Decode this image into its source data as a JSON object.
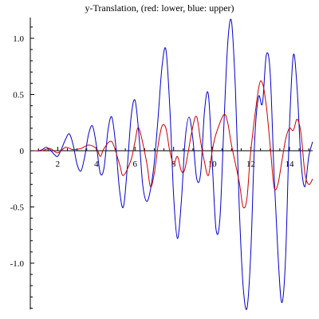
{
  "chart_data": {
    "type": "line",
    "title": "y-Translation, (red: lower, blue: upper)",
    "xlabel": "",
    "ylabel": "",
    "xlim": [
      0,
      15.2
    ],
    "ylim": [
      -1.4,
      1.15
    ],
    "x_ticks": [
      2,
      4,
      6,
      8,
      10,
      12,
      14
    ],
    "x_tick_labels": [
      "2",
      "4",
      "6",
      "8",
      "10",
      "12",
      "14"
    ],
    "y_ticks": [
      1.0,
      0.5,
      0,
      -0.5,
      -1.0
    ],
    "y_tick_labels": [
      "1.0",
      "0.5",
      "0",
      "-0.5",
      "-1.0"
    ],
    "grid": false,
    "legend": "none",
    "series": [
      {
        "color": "#0000cc",
        "points": [
          [
            0.8,
            0.0
          ],
          [
            1.0,
            0.0
          ],
          [
            1.2,
            0.01
          ],
          [
            1.4,
            0.03
          ],
          [
            1.6,
            0.01
          ],
          [
            1.8,
            -0.03
          ],
          [
            2.0,
            -0.05
          ],
          [
            2.2,
            0.02
          ],
          [
            2.4,
            0.1
          ],
          [
            2.6,
            0.15
          ],
          [
            2.8,
            0.05
          ],
          [
            3.0,
            -0.12
          ],
          [
            3.2,
            -0.18
          ],
          [
            3.4,
            -0.05
          ],
          [
            3.6,
            0.15
          ],
          [
            3.8,
            0.22
          ],
          [
            4.0,
            0.05
          ],
          [
            4.2,
            -0.2
          ],
          [
            4.4,
            -0.15
          ],
          [
            4.6,
            0.18
          ],
          [
            4.8,
            0.3
          ],
          [
            5.0,
            0.05
          ],
          [
            5.2,
            -0.35
          ],
          [
            5.4,
            -0.5
          ],
          [
            5.6,
            -0.15
          ],
          [
            5.8,
            0.3
          ],
          [
            6.0,
            0.45
          ],
          [
            6.2,
            0.15
          ],
          [
            6.4,
            -0.3
          ],
          [
            6.6,
            -0.45
          ],
          [
            6.8,
            -0.35
          ],
          [
            7.0,
            -0.1
          ],
          [
            7.2,
            0.3
          ],
          [
            7.4,
            0.75
          ],
          [
            7.6,
            0.9
          ],
          [
            7.8,
            0.4
          ],
          [
            8.0,
            -0.4
          ],
          [
            8.2,
            -0.78
          ],
          [
            8.4,
            -0.45
          ],
          [
            8.6,
            0.1
          ],
          [
            8.8,
            0.3
          ],
          [
            9.0,
            0.1
          ],
          [
            9.2,
            -0.25
          ],
          [
            9.4,
            -0.2
          ],
          [
            9.6,
            0.35
          ],
          [
            9.8,
            0.5
          ],
          [
            10.0,
            -0.1
          ],
          [
            10.2,
            -0.7
          ],
          [
            10.4,
            -0.6
          ],
          [
            10.6,
            0.2
          ],
          [
            10.8,
            0.95
          ],
          [
            11.0,
            1.15
          ],
          [
            11.2,
            0.55
          ],
          [
            11.4,
            -0.5
          ],
          [
            11.6,
            -1.2
          ],
          [
            11.8,
            -1.4
          ],
          [
            12.0,
            -0.9
          ],
          [
            12.2,
            0.1
          ],
          [
            12.4,
            0.48
          ],
          [
            12.6,
            0.42
          ],
          [
            12.8,
            0.85
          ],
          [
            13.0,
            0.7
          ],
          [
            13.2,
            -0.2
          ],
          [
            13.4,
            -0.9
          ],
          [
            13.6,
            -1.35
          ],
          [
            13.8,
            -0.95
          ],
          [
            14.0,
            0.2
          ],
          [
            14.2,
            0.85
          ],
          [
            14.4,
            0.55
          ],
          [
            14.6,
            -0.1
          ],
          [
            14.8,
            -0.32
          ],
          [
            15.0,
            -0.05
          ],
          [
            15.2,
            0.08
          ]
        ]
      },
      {
        "color": "#cc0000",
        "points": [
          [
            0.8,
            0.0
          ],
          [
            1.2,
            0.0
          ],
          [
            1.6,
            0.02
          ],
          [
            2.0,
            -0.02
          ],
          [
            2.4,
            0.03
          ],
          [
            2.8,
            0.01
          ],
          [
            3.2,
            0.02
          ],
          [
            3.6,
            0.05
          ],
          [
            4.0,
            0.02
          ],
          [
            4.2,
            -0.05
          ],
          [
            4.4,
            0.02
          ],
          [
            4.8,
            0.08
          ],
          [
            5.2,
            -0.12
          ],
          [
            5.4,
            -0.22
          ],
          [
            5.8,
            -0.08
          ],
          [
            6.0,
            0.08
          ],
          [
            6.2,
            0.2
          ],
          [
            6.6,
            -0.1
          ],
          [
            6.8,
            -0.32
          ],
          [
            7.0,
            -0.2
          ],
          [
            7.2,
            0.05
          ],
          [
            7.4,
            0.22
          ],
          [
            7.6,
            0.2
          ],
          [
            7.8,
            0.0
          ],
          [
            8.0,
            -0.12
          ],
          [
            8.2,
            -0.05
          ],
          [
            8.4,
            -0.18
          ],
          [
            8.6,
            -0.15
          ],
          [
            9.0,
            0.22
          ],
          [
            9.2,
            0.3
          ],
          [
            9.4,
            0.08
          ],
          [
            9.6,
            -0.1
          ],
          [
            9.8,
            -0.22
          ],
          [
            10.0,
            0.0
          ],
          [
            10.2,
            0.15
          ],
          [
            10.6,
            0.32
          ],
          [
            10.8,
            0.25
          ],
          [
            11.0,
            0.05
          ],
          [
            11.4,
            -0.28
          ],
          [
            11.6,
            -0.5
          ],
          [
            11.8,
            -0.42
          ],
          [
            12.0,
            0.0
          ],
          [
            12.4,
            0.55
          ],
          [
            12.6,
            0.6
          ],
          [
            12.8,
            0.4
          ],
          [
            13.0,
            0.05
          ],
          [
            13.2,
            -0.32
          ],
          [
            13.4,
            -0.3
          ],
          [
            13.6,
            -0.1
          ],
          [
            13.8,
            0.1
          ],
          [
            14.0,
            0.2
          ],
          [
            14.2,
            0.18
          ],
          [
            14.4,
            0.28
          ],
          [
            14.6,
            0.15
          ],
          [
            14.8,
            -0.2
          ],
          [
            15.0,
            -0.3
          ],
          [
            15.2,
            -0.25
          ]
        ]
      }
    ]
  }
}
